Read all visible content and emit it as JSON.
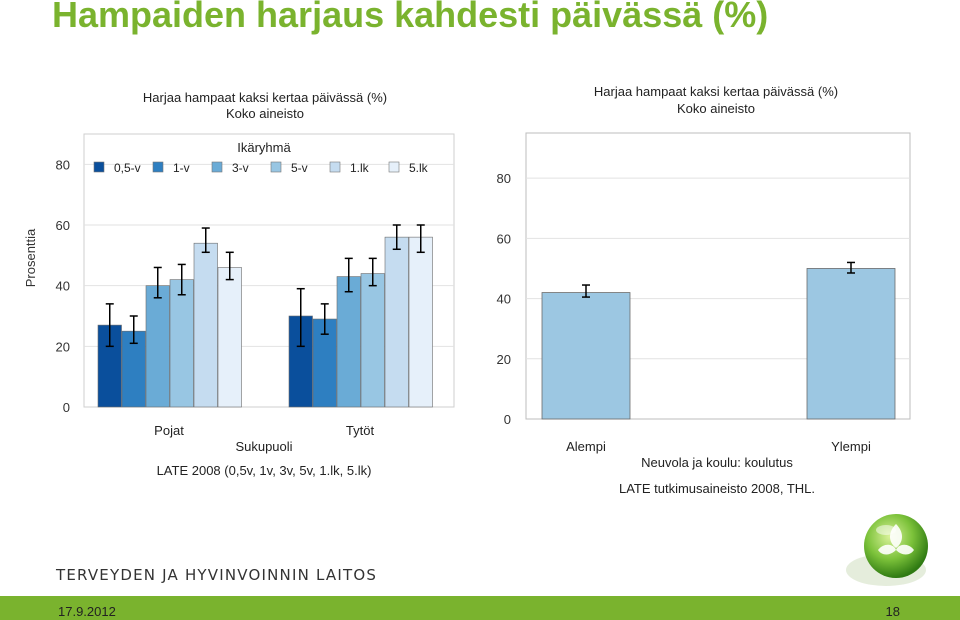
{
  "slide": {
    "title": "Hampaiden harjaus kahdesti päivässä (%)"
  },
  "footer": {
    "org": "TERVEYDEN JA HYVINVOINNIN LAITOS",
    "date": "17.9.2012",
    "page": "18"
  },
  "colors": {
    "brand_green": "#7ab32e"
  },
  "chart_data": [
    {
      "type": "bar",
      "title": "Harjaa hampaat kaksi kertaa päivässä (%)",
      "subtitle": "Koko aineisto",
      "ylabel": "Prosenttia",
      "xlabel": "Sukupuoli",
      "source": "LATE 2008 (0,5v, 1v, 3v, 5v, 1.lk, 5.lk)",
      "legend_title": "Ikäryhmä",
      "legend_position": "top",
      "ylim": [
        0,
        90
      ],
      "yticks": [
        "0",
        "20",
        "40",
        "60",
        "80"
      ],
      "categories": [
        "Pojat",
        "Tytöt"
      ],
      "series": [
        {
          "name": "0,5-v",
          "color": "#0a4f9c",
          "values": [
            27,
            30
          ],
          "error": [
            [
              20,
              34
            ],
            [
              20,
              39
            ]
          ]
        },
        {
          "name": "1-v",
          "color": "#2e7fc1",
          "values": [
            25,
            29
          ],
          "error": [
            [
              21,
              30
            ],
            [
              24,
              34
            ]
          ]
        },
        {
          "name": "3-v",
          "color": "#6aabd6",
          "values": [
            40,
            43
          ],
          "error": [
            [
              36,
              46
            ],
            [
              38,
              49
            ]
          ]
        },
        {
          "name": "5-v",
          "color": "#98c6e3",
          "values": [
            42,
            44
          ],
          "error": [
            [
              37,
              47
            ],
            [
              40,
              49
            ]
          ]
        },
        {
          "name": "1.lk",
          "color": "#c5dcf0",
          "values": [
            54,
            56
          ],
          "error": [
            [
              51,
              59
            ],
            [
              52,
              60
            ]
          ]
        },
        {
          "name": "5.lk",
          "color": "#e6f0fa",
          "values": [
            46,
            56
          ],
          "error": [
            [
              42,
              51
            ],
            [
              51,
              60
            ]
          ]
        }
      ]
    },
    {
      "type": "bar",
      "title": "Harjaa hampaat kaksi kertaa päivässä (%)",
      "subtitle": "Koko aineisto",
      "xlabel": "Neuvola ja koulu: koulutus",
      "source": "LATE tutkimusaineisto 2008, THL.",
      "ylim": [
        0,
        95
      ],
      "yticks": [
        "0",
        "20",
        "40",
        "60",
        "80"
      ],
      "categories": [
        "Alempi",
        "Ylempi"
      ],
      "values": [
        42,
        50
      ],
      "error": [
        [
          40.5,
          44.5
        ],
        [
          48.5,
          52
        ]
      ],
      "color": "#9cc7e2"
    }
  ]
}
